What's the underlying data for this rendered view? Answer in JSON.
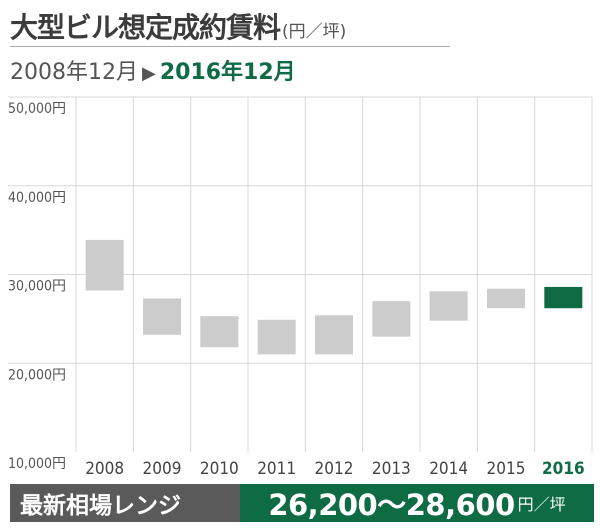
{
  "header": {
    "title": "大型ビル想定成約賃料",
    "unit": "(円／坪)",
    "period_from": "2008年12月",
    "period_arrow": "▶",
    "period_to": "2016年12月"
  },
  "footer": {
    "label": "最新相場レンジ",
    "range": "26,200〜28,600",
    "unit": "円／坪"
  },
  "colors": {
    "highlight": "#0e6b43",
    "bar": "#cccccc",
    "grid": "#d8d8d8",
    "footer_dark": "#5a5a5a"
  },
  "chart_data": {
    "type": "range-bar",
    "categories": [
      "2008",
      "2009",
      "2010",
      "2011",
      "2012",
      "2013",
      "2014",
      "2015",
      "2016"
    ],
    "series": [
      {
        "ranges": [
          [
            28200,
            33900
          ],
          [
            23200,
            27300
          ],
          [
            21800,
            25300
          ],
          [
            21000,
            24900
          ],
          [
            21000,
            25400
          ],
          [
            23000,
            27000
          ],
          [
            24800,
            28100
          ],
          [
            26200,
            28400
          ],
          [
            26200,
            28600
          ]
        ]
      }
    ],
    "highlight_category": "2016",
    "yticks": [
      "50,000円",
      "40,000円",
      "30,000円",
      "20,000円",
      "10,000円"
    ],
    "ylim": [
      10000,
      50000
    ],
    "grid": true
  }
}
